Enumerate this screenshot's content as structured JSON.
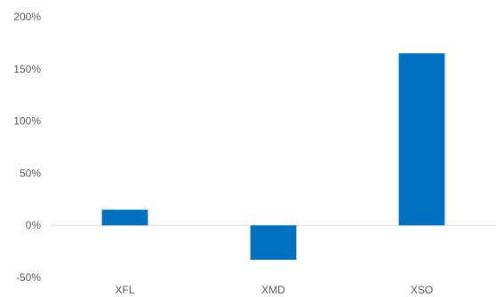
{
  "chart_data": {
    "type": "bar",
    "categories": [
      "XFL",
      "XMD",
      "XSO"
    ],
    "values": [
      15,
      -33,
      165
    ],
    "ylim": [
      -50,
      200
    ],
    "y_ticks": [
      200,
      150,
      100,
      50,
      0,
      -50
    ],
    "y_tick_labels": [
      "200%",
      "150%",
      "100%",
      "50%",
      "0%",
      "-50%"
    ],
    "title": "",
    "xlabel": "",
    "ylabel": "",
    "grid": false,
    "bar_color": "#0070c0",
    "zero_line_color": "#d9d9d9"
  }
}
